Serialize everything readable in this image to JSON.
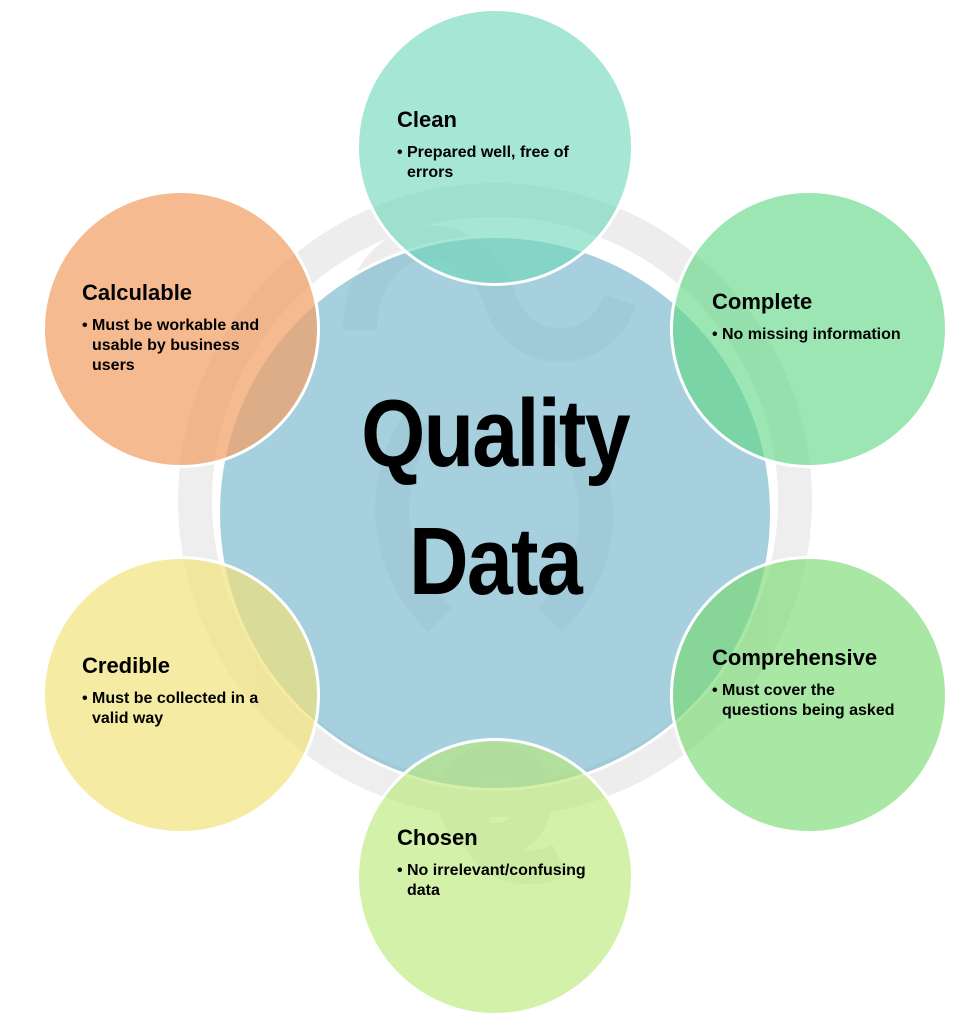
{
  "center": {
    "line1": "Quality",
    "line2": "Data"
  },
  "satellites": [
    {
      "id": "clean",
      "title": "Clean",
      "bullet": "Prepared well, free of errors",
      "color": "#70d7bc"
    },
    {
      "id": "complete",
      "title": "Complete",
      "bullet": "No missing information",
      "color": "#60d684"
    },
    {
      "id": "comprehensive",
      "title": "Comprehensive",
      "bullet": "Must cover the questions being asked",
      "color": "#74d86c"
    },
    {
      "id": "chosen",
      "title": "Chosen",
      "bullet": "No irrelevant/confusing data",
      "color": "#bae876"
    },
    {
      "id": "credible",
      "title": "Credible",
      "bullet": "Must be collected in a valid way",
      "color": "#f0e278"
    },
    {
      "id": "calculable",
      "title": "Calculable",
      "bullet": "Must be workable and usable by business users",
      "color": "#f2a066"
    }
  ],
  "bullet_symbol": "•",
  "center_color": "#7cbace"
}
